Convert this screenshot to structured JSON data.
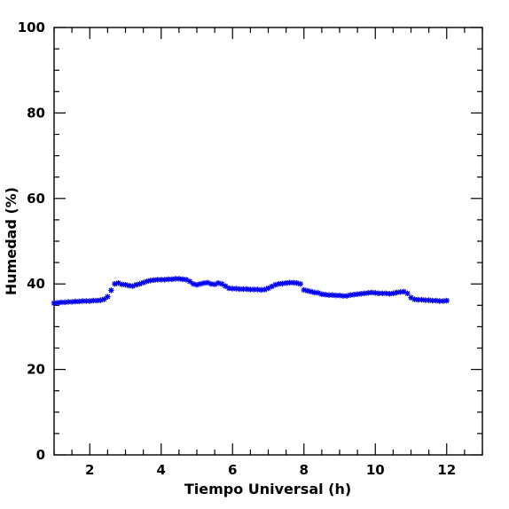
{
  "chart_data": {
    "type": "scatter",
    "title": "",
    "xlabel": "Tiempo Universal (h)",
    "ylabel": "Humedad (%)",
    "xlim": [
      1,
      13
    ],
    "ylim": [
      0,
      100
    ],
    "x_major_ticks": [
      2,
      4,
      6,
      8,
      10,
      12
    ],
    "x_minor_step": 0.5,
    "y_major_ticks": [
      0,
      20,
      40,
      60,
      80,
      100
    ],
    "y_minor_step": 5,
    "x_tick_labels": [
      "2",
      "4",
      "6",
      "8",
      "10",
      "12"
    ],
    "y_tick_labels": [
      "0",
      "20",
      "40",
      "60",
      "80",
      "100"
    ],
    "grid": false,
    "marker": "star",
    "series": [
      {
        "color": "#0000ee",
        "x": [
          1.0,
          1.1,
          1.2,
          1.3,
          1.4,
          1.5,
          1.6,
          1.7,
          1.8,
          1.9,
          2.0,
          2.1,
          2.2,
          2.3,
          2.4,
          2.5,
          2.6,
          2.7,
          2.8,
          2.9,
          3.0,
          3.1,
          3.2,
          3.3,
          3.4,
          3.5,
          3.6,
          3.7,
          3.8,
          3.9,
          4.0,
          4.1,
          4.2,
          4.3,
          4.4,
          4.5,
          4.6,
          4.7,
          4.8,
          4.9,
          5.0,
          5.1,
          5.2,
          5.3,
          5.4,
          5.5,
          5.6,
          5.7,
          5.8,
          5.9,
          6.0,
          6.1,
          6.2,
          6.3,
          6.4,
          6.5,
          6.6,
          6.7,
          6.8,
          6.9,
          7.0,
          7.1,
          7.2,
          7.3,
          7.4,
          7.5,
          7.6,
          7.7,
          7.8,
          7.9,
          8.0,
          8.1,
          8.2,
          8.3,
          8.4,
          8.5,
          8.6,
          8.7,
          8.8,
          8.9,
          9.0,
          9.1,
          9.2,
          9.3,
          9.4,
          9.5,
          9.6,
          9.7,
          9.8,
          9.9,
          10.0,
          10.1,
          10.2,
          10.3,
          10.4,
          10.5,
          10.6,
          10.7,
          10.8,
          10.9,
          11.0,
          11.1,
          11.2,
          11.3,
          11.4,
          11.5,
          11.6,
          11.7,
          11.8,
          11.9,
          12.0
        ],
        "y": [
          35.5,
          35.6,
          35.7,
          35.7,
          35.8,
          35.8,
          35.9,
          35.9,
          36.0,
          36.0,
          36.0,
          36.1,
          36.1,
          36.2,
          36.4,
          37.0,
          38.5,
          40.0,
          40.2,
          39.9,
          39.8,
          39.6,
          39.5,
          39.8,
          40.0,
          40.3,
          40.6,
          40.8,
          40.9,
          41.0,
          41.0,
          41.0,
          41.1,
          41.1,
          41.2,
          41.2,
          41.1,
          41.0,
          40.6,
          40.0,
          39.8,
          40.0,
          40.2,
          40.3,
          40.0,
          39.9,
          40.2,
          40.0,
          39.5,
          39.0,
          38.9,
          38.9,
          38.8,
          38.8,
          38.8,
          38.7,
          38.7,
          38.7,
          38.6,
          38.7,
          39.0,
          39.4,
          39.8,
          40.0,
          40.1,
          40.2,
          40.3,
          40.3,
          40.2,
          40.0,
          38.6,
          38.4,
          38.2,
          38.0,
          37.9,
          37.6,
          37.5,
          37.4,
          37.4,
          37.3,
          37.3,
          37.2,
          37.2,
          37.4,
          37.5,
          37.6,
          37.7,
          37.8,
          37.9,
          38.0,
          37.9,
          37.8,
          37.8,
          37.8,
          37.7,
          37.8,
          38.0,
          38.1,
          38.2,
          37.8,
          36.8,
          36.4,
          36.3,
          36.3,
          36.2,
          36.2,
          36.1,
          36.1,
          36.0,
          36.0,
          36.1
        ]
      }
    ]
  }
}
